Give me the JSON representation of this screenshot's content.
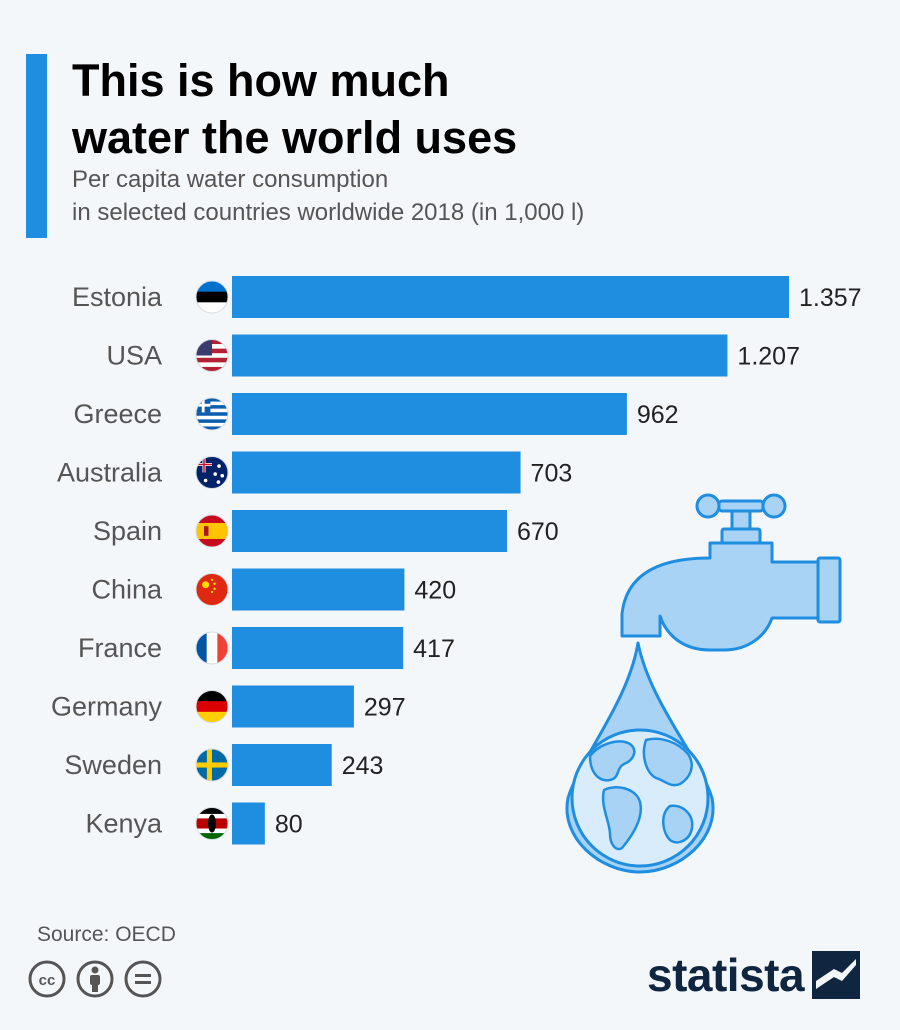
{
  "header": {
    "title_line1": "This is how much",
    "title_line2": "water the world uses",
    "subtitle_line1": "Per capita water consumption",
    "subtitle_line2": "in selected countries worldwide 2018 (in 1,000 l)"
  },
  "footer": {
    "source": "Source: OECD",
    "brand": "statista"
  },
  "colors": {
    "bar": "#1f8ee0",
    "accent": "#1f8ee0",
    "label": "#555555",
    "value": "#222222"
  },
  "icons": {
    "illustration": "faucet-with-water-drop-globe-icon",
    "license": [
      "creative-commons-icon",
      "attribution-icon",
      "no-derivatives-icon"
    ],
    "brand_logo": "statista-logo-icon"
  },
  "chart_data": {
    "type": "bar",
    "orientation": "horizontal",
    "categories": [
      "Estonia",
      "USA",
      "Greece",
      "Australia",
      "Spain",
      "China",
      "France",
      "Germany",
      "Sweden",
      "Kenya"
    ],
    "values": [
      1357,
      1207,
      962,
      703,
      670,
      420,
      417,
      297,
      243,
      80
    ],
    "value_labels": [
      "1.357",
      "1.207",
      "962",
      "703",
      "670",
      "420",
      "417",
      "297",
      "243",
      "80"
    ],
    "flags": [
      "estonia-flag-icon",
      "usa-flag-icon",
      "greece-flag-icon",
      "australia-flag-icon",
      "spain-flag-icon",
      "china-flag-icon",
      "france-flag-icon",
      "germany-flag-icon",
      "sweden-flag-icon",
      "kenya-flag-icon"
    ],
    "title": "This is how much water the world uses",
    "xlabel": "",
    "ylabel": "",
    "xlim": [
      0,
      1357
    ],
    "grid": false,
    "legend": "none"
  }
}
